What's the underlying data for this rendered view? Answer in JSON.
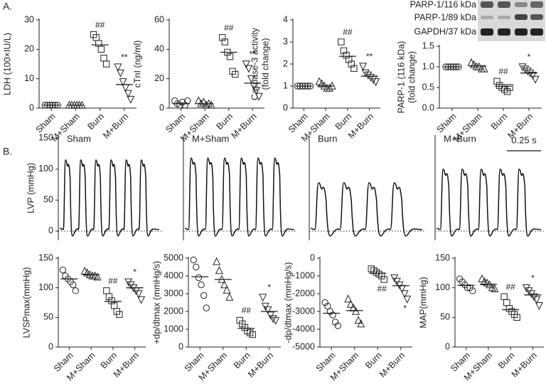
{
  "figure": {
    "panel_labels": [
      "A.",
      "B."
    ]
  },
  "blot": {
    "labels": [
      "PARP-1/116 kDa",
      "PARP-1/89 kDa",
      "GAPDH/37 kDa"
    ]
  },
  "chart_data": [
    {
      "type": "dotplot",
      "ylabel": "LDH (100×IU/L)",
      "categories": [
        "Sham",
        "M+Sham",
        "Burn",
        "M+Burn"
      ],
      "markers": [
        "circle",
        "triangle",
        "square",
        "triangle-down"
      ],
      "values": [
        [
          1,
          1,
          1,
          1,
          1,
          1
        ],
        [
          1,
          1,
          1,
          1,
          1,
          1
        ],
        [
          25,
          24,
          22,
          20,
          17,
          15
        ],
        [
          14,
          12,
          9,
          7,
          5,
          3
        ]
      ],
      "means": [
        1,
        1,
        21.5,
        8
      ],
      "annotations": [
        null,
        null,
        "##",
        "**"
      ],
      "ylim": [
        0,
        30
      ],
      "yticks": [
        0,
        10,
        20,
        30
      ]
    },
    {
      "type": "dotplot",
      "ylabel": "cTnI (ng/ml)",
      "categories": [
        "Sham",
        "M+Sham",
        "Burn",
        "M+Burn"
      ],
      "markers": [
        "circle",
        "triangle",
        "square",
        "triangle-down"
      ],
      "values": [
        [
          5,
          3,
          2,
          4,
          2,
          5
        ],
        [
          5,
          3,
          4,
          2,
          3,
          2
        ],
        [
          48,
          45,
          38,
          35,
          25,
          23
        ],
        [
          30,
          27,
          20,
          15,
          12,
          8
        ]
      ],
      "means": [
        3,
        3,
        38,
        17
      ],
      "annotations": [
        null,
        null,
        "##",
        "**"
      ],
      "ylim": [
        0,
        60
      ],
      "yticks": [
        0,
        20,
        40,
        60
      ]
    },
    {
      "type": "dotplot",
      "ylabel": [
        "Caspase-3 activity",
        "(fold change)"
      ],
      "categories": [
        "Sham",
        "M+Sham",
        "Burn",
        "M+Burn"
      ],
      "markers": [
        "circle",
        "triangle",
        "square",
        "triangle-down"
      ],
      "values": [
        [
          1,
          1,
          1,
          1,
          1,
          1
        ],
        [
          1.2,
          1.1,
          1,
          0.9,
          0.9,
          1
        ],
        [
          3,
          2.6,
          2.4,
          2.2,
          2,
          1.8
        ],
        [
          1.9,
          1.6,
          1.5,
          1.4,
          1.3,
          1.2
        ]
      ],
      "means": [
        1,
        1,
        2.35,
        1.45
      ],
      "annotations": [
        null,
        null,
        "##",
        "**"
      ],
      "ylim": [
        0,
        4
      ],
      "yticks": [
        0,
        1,
        2,
        3,
        4
      ]
    },
    {
      "type": "dotplot",
      "ylabel": [
        "PARP-1 (116 kDa)",
        "(fold change)"
      ],
      "categories": [
        "Sham",
        "M+Sham",
        "Burn",
        "M+Burn"
      ],
      "markers": [
        "circle",
        "triangle",
        "square",
        "triangle-down"
      ],
      "values": [
        [
          1,
          1,
          1,
          1,
          1,
          1
        ],
        [
          1.1,
          1.05,
          1,
          1,
          0.95,
          0.95
        ],
        [
          0.65,
          0.55,
          0.5,
          0.45,
          0.4,
          0.5
        ],
        [
          1,
          0.95,
          0.9,
          0.85,
          0.8,
          0.7
        ]
      ],
      "means": [
        1,
        1.02,
        0.53,
        0.85
      ],
      "annotations": [
        null,
        null,
        "##",
        "*"
      ],
      "ylim": [
        0,
        1.5
      ],
      "yticks": [
        {
          "value": 0,
          "label": "0.0"
        },
        0.5,
        {
          "value": 1,
          "label": "1.0"
        },
        1.5
      ]
    },
    {
      "type": "trace",
      "ylabel": "LVP (mmHg)",
      "ylim": [
        -15,
        155
      ],
      "yticks": [
        0,
        50,
        100,
        150
      ],
      "scale_bar": "0.25 s",
      "panels": [
        {
          "title": "Sham",
          "peak": 115,
          "beats": 6
        },
        {
          "title": "M+Sham",
          "peak": 118,
          "beats": 6
        },
        {
          "title": "Burn",
          "peak": 78,
          "beats": 4
        },
        {
          "title": "M+Burn",
          "peak": 100,
          "beats": 5
        }
      ]
    },
    {
      "type": "dotplot",
      "ylabel": "LVSPmax(mmHg)",
      "categories": [
        "Sham",
        "M+Sham",
        "Burn",
        "M+Burn"
      ],
      "markers": [
        "circle",
        "triangle",
        "square",
        "triangle-down"
      ],
      "values": [
        [
          130,
          120,
          115,
          110,
          105,
          95
        ],
        [
          128,
          125,
          122,
          120,
          120,
          118
        ],
        [
          95,
          85,
          78,
          70,
          60,
          55
        ],
        [
          110,
          105,
          100,
          95,
          90,
          80
        ]
      ],
      "means": [
        115,
        122,
        77,
        100
      ],
      "annotations": [
        null,
        null,
        "##",
        "*"
      ],
      "ylim": [
        0,
        150
      ],
      "yticks": [
        0,
        50,
        100,
        150
      ]
    },
    {
      "type": "dotplot",
      "ylabel": "+dp/dtmax (mmHg/s)",
      "categories": [
        "Sham",
        "M+Sham",
        "Burn",
        "M+Burn"
      ],
      "markers": [
        "circle",
        "triangle",
        "square",
        "triangle-down"
      ],
      "values": [
        [
          4900,
          4500,
          3900,
          3500,
          2900,
          2200
        ],
        [
          4800,
          4300,
          3800,
          3500,
          3200,
          2800
        ],
        [
          1500,
          1300,
          1100,
          900,
          800,
          700
        ],
        [
          2800,
          2300,
          2100,
          1800,
          1600,
          1500
        ]
      ],
      "means": [
        3950,
        3800,
        1050,
        2000
      ],
      "annotations": [
        null,
        null,
        "##",
        "*"
      ],
      "ylim": [
        0,
        5000
      ],
      "yticks": [
        0,
        1000,
        2000,
        3000,
        4000,
        5000
      ]
    },
    {
      "type": "dotplot",
      "ylabel": "-dp/dtmax (mmHg/s)",
      "categories": [
        "Sham",
        "M+Sham",
        "Burn",
        "M+Burn"
      ],
      "markers": [
        "circle",
        "triangle",
        "square",
        "triangle-down"
      ],
      "values": [
        [
          -2500,
          -2700,
          -3000,
          -3200,
          -3600,
          -3800
        ],
        [
          -2300,
          -2600,
          -2800,
          -3000,
          -3500,
          -3700
        ],
        [
          -600,
          -700,
          -800,
          -900,
          -1000,
          -1200
        ],
        [
          -1100,
          -1300,
          -1500,
          -1700,
          -2000,
          -2300
        ]
      ],
      "means": [
        -3100,
        -2950,
        -850,
        -1550
      ],
      "annotations": [
        null,
        null,
        "##",
        "*"
      ],
      "ylim": [
        -5000,
        0
      ],
      "yticks": [
        -5000,
        -4000,
        -3000,
        -2000,
        -1000,
        0
      ]
    },
    {
      "type": "dotplot",
      "ylabel": "MAP(mmHg)",
      "categories": [
        "Sham",
        "M+Sham",
        "Burn",
        "M+Burn"
      ],
      "markers": [
        "circle",
        "triangle",
        "square",
        "triangle-down"
      ],
      "values": [
        [
          115,
          110,
          105,
          100,
          100,
          95
        ],
        [
          115,
          110,
          108,
          105,
          100,
          98
        ],
        [
          85,
          75,
          65,
          60,
          55,
          50
        ],
        [
          100,
          95,
          90,
          85,
          80,
          70
        ]
      ],
      "means": [
        104,
        106,
        63,
        88
      ],
      "annotations": [
        null,
        null,
        "##",
        "*"
      ],
      "ylim": [
        0,
        150
      ],
      "yticks": [
        0,
        50,
        100,
        150
      ]
    }
  ]
}
